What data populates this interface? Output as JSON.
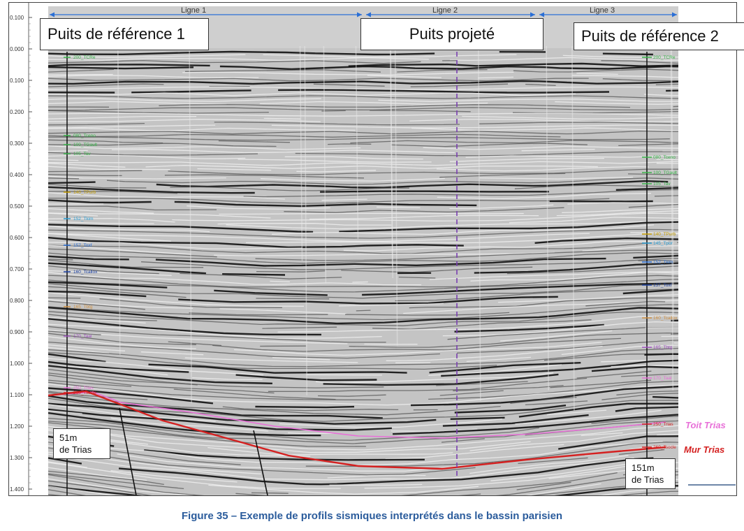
{
  "figure": {
    "caption": "Figure 35 – Exemple de profils sismiques interprétés dans le bassin parisien",
    "lines": [
      "Ligne 1",
      "Ligne 2",
      "Ligne 3"
    ],
    "wells": {
      "left": "Puits de référence 1",
      "middle": "Puits projeté",
      "right": "Puits de référence 2"
    },
    "trias_left": [
      "51m",
      "de Trias"
    ],
    "trias_right": [
      "151m",
      "de Trias"
    ],
    "horizons": {
      "toit_trias": "Toit Trias",
      "mur_trias": "Mur Trias"
    },
    "time_axis": [
      "0.100",
      "0.000",
      "0.100",
      "0.200",
      "0.300",
      "0.400",
      "0.500",
      "0.600",
      "0.700",
      "0.800",
      "0.900",
      "1.000",
      "1.100",
      "1.200",
      "1.300",
      "1.400"
    ],
    "well_markers_left": [
      "200_TCRe",
      "080_Tceno",
      "100_TGault",
      "105_Tav",
      "140_TPurb",
      "152_Tkim",
      "157_Toxf",
      "160_Tcallox",
      "165_Tbtg",
      "170_Taal",
      "250_Trias",
      "260_Tsocle"
    ],
    "well_markers_right": [
      "200_TCRe",
      "080_Tceno",
      "100_TGault",
      "105_Tav",
      "140_TPurb",
      "145_Tpor",
      "152_Tkim",
      "157_Toxf",
      "160_Tcallox",
      "165_Tbtg",
      "170_Taal",
      "250_Trias",
      "260_Tsocle"
    ],
    "colors": {
      "caption": "#2b5c9c",
      "toit_trias": "#e870d8",
      "mur_trias": "#d42020",
      "arrows": "#2a6fd6",
      "projected_well": "#7a3fb0"
    }
  }
}
